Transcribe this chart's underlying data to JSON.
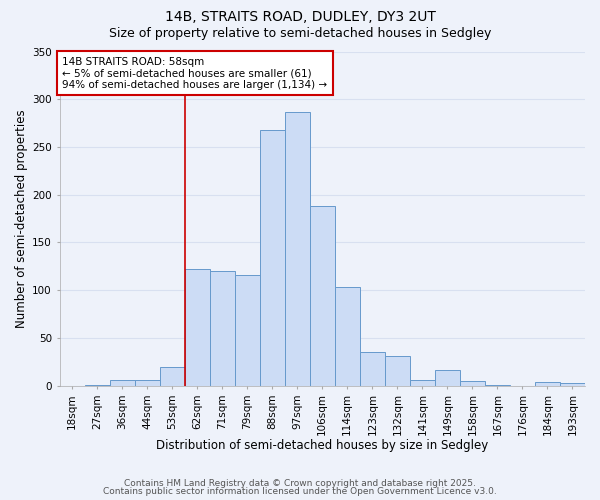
{
  "title_line1": "14B, STRAITS ROAD, DUDLEY, DY3 2UT",
  "title_line2": "Size of property relative to semi-detached houses in Sedgley",
  "xlabel": "Distribution of semi-detached houses by size in Sedgley",
  "ylabel": "Number of semi-detached properties",
  "bar_labels": [
    "18sqm",
    "27sqm",
    "36sqm",
    "44sqm",
    "53sqm",
    "62sqm",
    "71sqm",
    "79sqm",
    "88sqm",
    "97sqm",
    "106sqm",
    "114sqm",
    "123sqm",
    "132sqm",
    "141sqm",
    "149sqm",
    "158sqm",
    "167sqm",
    "176sqm",
    "184sqm",
    "193sqm"
  ],
  "bar_values": [
    0,
    1,
    6,
    6,
    19,
    122,
    120,
    116,
    268,
    287,
    188,
    103,
    35,
    31,
    6,
    16,
    5,
    1,
    0,
    4,
    3
  ],
  "bar_color": "#ccdcf5",
  "bar_edge_color": "#6699cc",
  "background_color": "#eef2fa",
  "grid_color": "#d8e0f0",
  "ylim": [
    0,
    350
  ],
  "yticks": [
    0,
    50,
    100,
    150,
    200,
    250,
    300,
    350
  ],
  "vline_x_index": 5,
  "vline_color": "#cc0000",
  "annotation_title": "14B STRAITS ROAD: 58sqm",
  "annotation_line1": "← 5% of semi-detached houses are smaller (61)",
  "annotation_line2": "94% of semi-detached houses are larger (1,134) →",
  "annotation_box_color": "#ffffff",
  "annotation_box_edge": "#cc0000",
  "footer_line1": "Contains HM Land Registry data © Crown copyright and database right 2025.",
  "footer_line2": "Contains public sector information licensed under the Open Government Licence v3.0.",
  "title_fontsize": 10,
  "subtitle_fontsize": 9,
  "axis_label_fontsize": 8.5,
  "tick_fontsize": 7.5,
  "annotation_fontsize": 7.5,
  "footer_fontsize": 6.5
}
